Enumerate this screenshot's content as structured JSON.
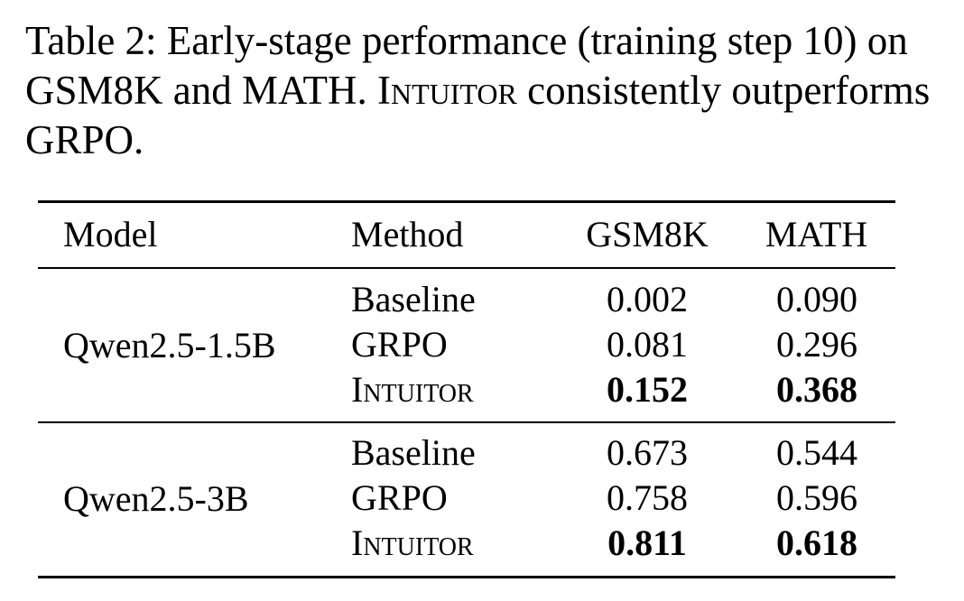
{
  "caption": {
    "prefix": "Table 2: Early-stage performance (training step 10) on GSM8K and MATH. ",
    "method_name": "Intuitor",
    "suffix": " consistently outperforms GRPO."
  },
  "table": {
    "headers": {
      "model": "Model",
      "method": "Method",
      "gsm8k": "GSM8K",
      "math": "MATH"
    },
    "groups": [
      {
        "model": "Qwen2.5-1.5B",
        "rows": [
          {
            "method": "Baseline",
            "gsm8k": "0.002",
            "math": "0.090",
            "best": false
          },
          {
            "method": "GRPO",
            "gsm8k": "0.081",
            "math": "0.296",
            "best": false
          },
          {
            "method": "Intuitor",
            "gsm8k": "0.152",
            "math": "0.368",
            "best": true
          }
        ]
      },
      {
        "model": "Qwen2.5-3B",
        "rows": [
          {
            "method": "Baseline",
            "gsm8k": "0.673",
            "math": "0.544",
            "best": false
          },
          {
            "method": "GRPO",
            "gsm8k": "0.758",
            "math": "0.596",
            "best": false
          },
          {
            "method": "Intuitor",
            "gsm8k": "0.811",
            "math": "0.618",
            "best": true
          }
        ]
      }
    ]
  }
}
